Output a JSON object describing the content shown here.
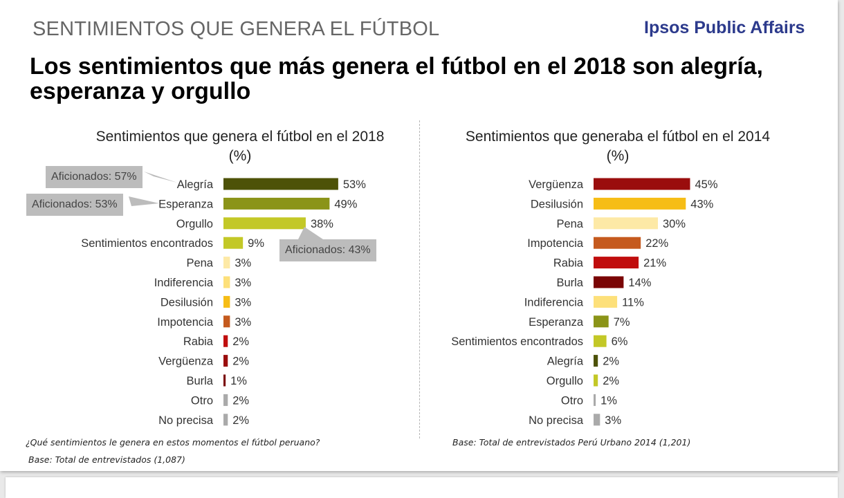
{
  "header": {
    "eyebrow": "SENTIMIENTOS QUE GENERA EL FÚTBOL",
    "brand": "Ipsos Public Affairs",
    "headline": "Los sentimientos que más genera el fútbol en el 2018 son alegría, esperanza y orgullo"
  },
  "charts": {
    "left": {
      "title": "Sentimientos que genera el fútbol en el 2018",
      "unit": "(%)"
    },
    "right": {
      "title": "Sentimientos que generaba el fútbol en el 2014",
      "unit": "(%)"
    }
  },
  "callouts": [
    "Aficionados: 57%",
    "Aficionados: 53%",
    "Aficionados: 43%"
  ],
  "footnotes": {
    "question": "¿Qué sentimientos le genera en estos momentos el fútbol peruano?",
    "base_2018": "Base: Total de entrevistados (1,087)",
    "base_2014": "Base: Total de entrevistados Perú Urbano 2014 (1,201)"
  },
  "chart_data": [
    {
      "type": "bar",
      "orientation": "horizontal",
      "title": "Sentimientos que genera el fútbol en el 2018",
      "subtitle": "(%)",
      "categories": [
        "Alegría",
        "Esperanza",
        "Orgullo",
        "Sentimientos encontrados",
        "Pena",
        "Indiferencia",
        "Desilusión",
        "Impotencia",
        "Rabia",
        "Vergüenza",
        "Burla",
        "Otro",
        "No precisa"
      ],
      "values": [
        53,
        49,
        38,
        9,
        3,
        3,
        3,
        3,
        2,
        2,
        1,
        2,
        2
      ],
      "value_suffix": "%",
      "colors": [
        "#4d5208",
        "#8b9418",
        "#c3c827",
        "#c3c827",
        "#fde9a6",
        "#fde07a",
        "#f6bd16",
        "#c55a1e",
        "#c00d0d",
        "#9a0d0d",
        "#7a0505",
        "#aaaaaa",
        "#aaaaaa"
      ],
      "annotations": [
        {
          "category": "Alegría",
          "text": "Aficionados: 57%"
        },
        {
          "category": "Esperanza",
          "text": "Aficionados: 53%"
        },
        {
          "category": "Orgullo",
          "text": "Aficionados: 43%"
        }
      ]
    },
    {
      "type": "bar",
      "orientation": "horizontal",
      "title": "Sentimientos que generaba el fútbol en el 2014",
      "subtitle": "(%)",
      "categories": [
        "Vergüenza",
        "Desilusión",
        "Pena",
        "Impotencia",
        "Rabia",
        "Burla",
        "Indiferencia",
        "Esperanza",
        "Sentimientos encontrados",
        "Alegría",
        "Orgullo",
        "Otro",
        "No precisa"
      ],
      "values": [
        45,
        43,
        30,
        22,
        21,
        14,
        11,
        7,
        6,
        2,
        2,
        1,
        3
      ],
      "value_suffix": "%",
      "colors": [
        "#9a0d0d",
        "#f6bd16",
        "#fde9a6",
        "#c55a1e",
        "#c00d0d",
        "#7a0505",
        "#fde07a",
        "#8b9418",
        "#c3c827",
        "#4d5208",
        "#c3c827",
        "#aaaaaa",
        "#aaaaaa"
      ]
    }
  ]
}
